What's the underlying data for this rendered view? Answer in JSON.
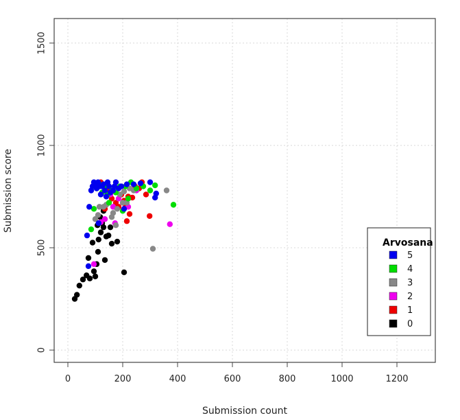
{
  "chart_data": {
    "type": "scatter",
    "title": "",
    "xlabel": "Submission count",
    "ylabel": "Submission score",
    "xlim": [
      -50,
      1340
    ],
    "ylim": [
      -60,
      1620
    ],
    "xticks": [
      0,
      200,
      400,
      600,
      800,
      1000,
      1200
    ],
    "yticks": [
      0,
      500,
      1000,
      1500
    ],
    "grid": true,
    "legend": {
      "title": "Arvosana",
      "placement": "right",
      "entries": [
        {
          "label": "5",
          "color": "#0000ee"
        },
        {
          "label": "4",
          "color": "#00dd00"
        },
        {
          "label": "3",
          "color": "#888888"
        },
        {
          "label": "2",
          "color": "#ee00ee"
        },
        {
          "label": "1",
          "color": "#ee0000"
        },
        {
          "label": "0",
          "color": "#000000"
        }
      ]
    },
    "series": [
      {
        "name": "0",
        "color": "#000000",
        "points": [
          [
            25,
            250
          ],
          [
            33,
            270
          ],
          [
            42,
            315
          ],
          [
            55,
            345
          ],
          [
            68,
            365
          ],
          [
            75,
            450
          ],
          [
            80,
            350
          ],
          [
            90,
            525
          ],
          [
            95,
            385
          ],
          [
            100,
            360
          ],
          [
            105,
            420
          ],
          [
            110,
            480
          ],
          [
            112,
            540
          ],
          [
            120,
            575
          ],
          [
            125,
            620
          ],
          [
            130,
            600
          ],
          [
            135,
            440
          ],
          [
            140,
            555
          ],
          [
            148,
            560
          ],
          [
            155,
            600
          ],
          [
            160,
            520
          ],
          [
            180,
            530
          ],
          [
            205,
            380
          ],
          [
            130,
            680
          ],
          [
            118,
            650
          ],
          [
            108,
            610
          ]
        ]
      },
      {
        "name": "1",
        "color": "#ee0000",
        "points": [
          [
            120,
            820
          ],
          [
            140,
            800
          ],
          [
            150,
            780
          ],
          [
            160,
            740
          ],
          [
            175,
            720
          ],
          [
            185,
            700
          ],
          [
            195,
            760
          ],
          [
            205,
            730
          ],
          [
            210,
            700
          ],
          [
            215,
            630
          ],
          [
            220,
            750
          ],
          [
            235,
            745
          ],
          [
            245,
            800
          ],
          [
            260,
            790
          ],
          [
            270,
            820
          ],
          [
            285,
            760
          ],
          [
            298,
            655
          ],
          [
            135,
            690
          ],
          [
            170,
            700
          ],
          [
            225,
            665
          ]
        ]
      },
      {
        "name": "2",
        "color": "#ee00ee",
        "points": [
          [
            95,
            420
          ],
          [
            120,
            625
          ],
          [
            135,
            640
          ],
          [
            155,
            760
          ],
          [
            165,
            700
          ],
          [
            172,
            620
          ],
          [
            185,
            740
          ],
          [
            200,
            720
          ],
          [
            220,
            700
          ],
          [
            250,
            780
          ],
          [
            372,
            615
          ],
          [
            145,
            810
          ]
        ]
      },
      {
        "name": "3",
        "color": "#888888",
        "points": [
          [
            100,
            640
          ],
          [
            110,
            660
          ],
          [
            115,
            700
          ],
          [
            130,
            700
          ],
          [
            140,
            710
          ],
          [
            160,
            650
          ],
          [
            165,
            670
          ],
          [
            175,
            610
          ],
          [
            180,
            690
          ],
          [
            190,
            760
          ],
          [
            200,
            720
          ],
          [
            205,
            775
          ],
          [
            215,
            720
          ],
          [
            225,
            790
          ],
          [
            240,
            780
          ],
          [
            310,
            495
          ],
          [
            360,
            780
          ]
        ]
      },
      {
        "name": "4",
        "color": "#00dd00",
        "points": [
          [
            85,
            590
          ],
          [
            95,
            690
          ],
          [
            105,
            790
          ],
          [
            115,
            810
          ],
          [
            125,
            770
          ],
          [
            135,
            800
          ],
          [
            145,
            760
          ],
          [
            150,
            720
          ],
          [
            160,
            780
          ],
          [
            175,
            770
          ],
          [
            190,
            800
          ],
          [
            200,
            680
          ],
          [
            210,
            800
          ],
          [
            220,
            740
          ],
          [
            230,
            820
          ],
          [
            250,
            790
          ],
          [
            275,
            800
          ],
          [
            300,
            780
          ],
          [
            318,
            805
          ],
          [
            385,
            710
          ]
        ]
      },
      {
        "name": "5",
        "color": "#0000ee",
        "points": [
          [
            75,
            410
          ],
          [
            70,
            560
          ],
          [
            78,
            700
          ],
          [
            85,
            780
          ],
          [
            90,
            800
          ],
          [
            95,
            820
          ],
          [
            100,
            810
          ],
          [
            105,
            790
          ],
          [
            110,
            820
          ],
          [
            115,
            800
          ],
          [
            120,
            760
          ],
          [
            125,
            800
          ],
          [
            130,
            810
          ],
          [
            135,
            780
          ],
          [
            140,
            750
          ],
          [
            145,
            820
          ],
          [
            150,
            800
          ],
          [
            155,
            770
          ],
          [
            165,
            780
          ],
          [
            170,
            800
          ],
          [
            175,
            820
          ],
          [
            185,
            790
          ],
          [
            195,
            800
          ],
          [
            205,
            690
          ],
          [
            215,
            810
          ],
          [
            240,
            810
          ],
          [
            265,
            815
          ],
          [
            300,
            820
          ],
          [
            318,
            745
          ],
          [
            322,
            765
          ],
          [
            112,
            620
          ]
        ]
      }
    ]
  }
}
